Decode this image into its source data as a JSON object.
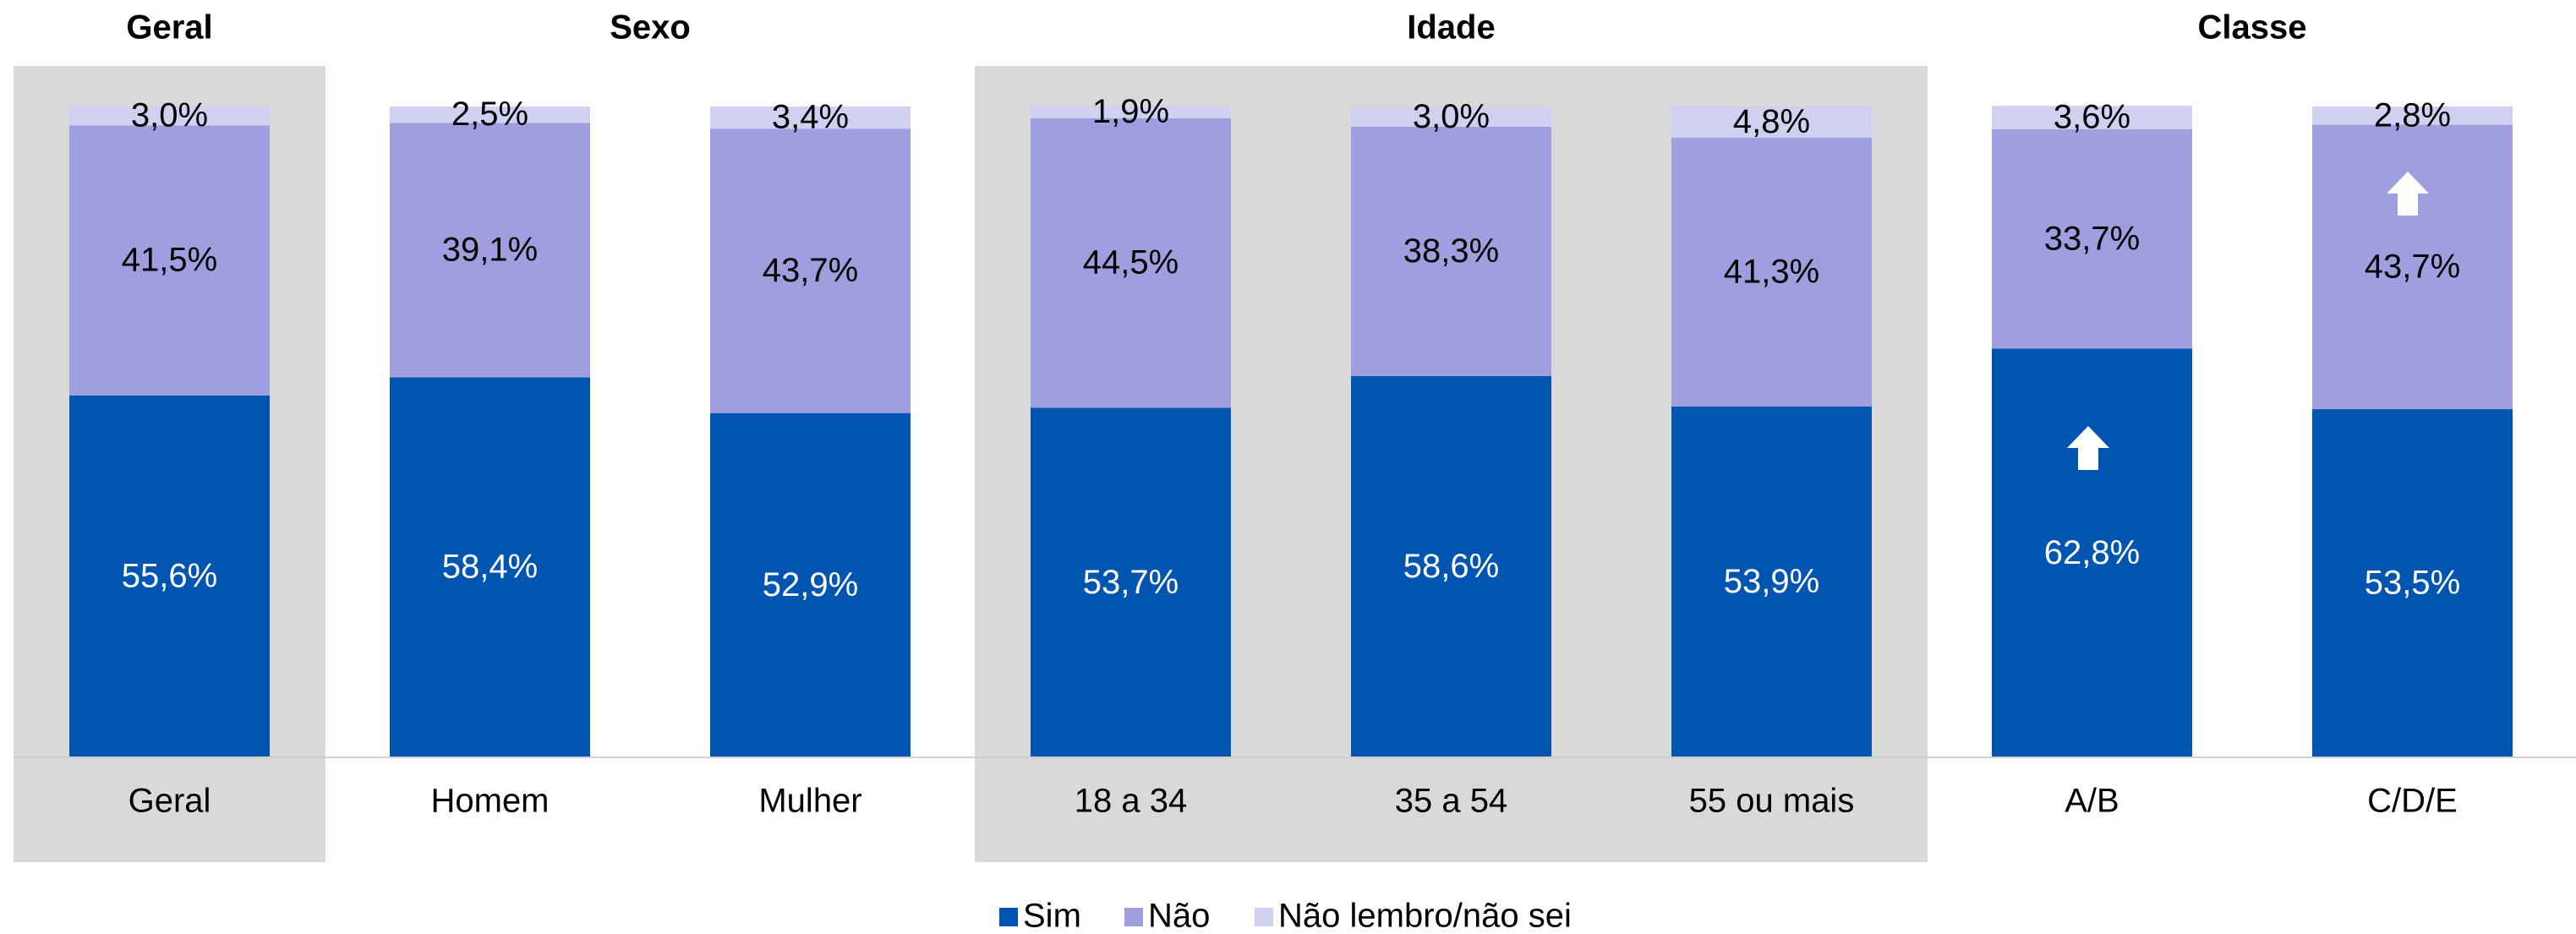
{
  "chart_data": {
    "type": "stacked_bar",
    "groups": [
      {
        "name": "Geral",
        "categories": [
          "Geral"
        ],
        "shaded": true
      },
      {
        "name": "Sexo",
        "categories": [
          "Homem",
          "Mulher"
        ],
        "shaded": false
      },
      {
        "name": "Idade",
        "categories": [
          "18 a 34",
          "35 a 54",
          "55 ou mais"
        ],
        "shaded": true
      },
      {
        "name": "Classe",
        "categories": [
          "A/B",
          "C/D/E"
        ],
        "shaded": false
      }
    ],
    "series": [
      {
        "name": "Sim",
        "color": "#0055b0",
        "values": [
          55.6,
          58.4,
          52.9,
          53.7,
          58.6,
          53.9,
          62.8,
          53.5
        ],
        "value_labels": [
          "55,6%",
          "58,4%",
          "52,9%",
          "53,7%",
          "58,6%",
          "53,9%",
          "62,8%",
          "53,5%"
        ]
      },
      {
        "name": "Não",
        "color": "#9f9fdf",
        "values": [
          41.5,
          39.1,
          43.7,
          44.5,
          38.3,
          41.3,
          33.7,
          43.7
        ],
        "value_labels": [
          "41,5%",
          "39,1%",
          "43,7%",
          "44,5%",
          "38,3%",
          "41,3%",
          "33,7%",
          "43,7%"
        ]
      },
      {
        "name": "Não lembro/não sei",
        "color": "#d0d0f0",
        "values": [
          3.0,
          2.5,
          3.4,
          1.9,
          3.0,
          4.8,
          3.6,
          2.8
        ],
        "value_labels": [
          "3,0%",
          "2,5%",
          "3,4%",
          "1,9%",
          "3,0%",
          "4,8%",
          "3,6%",
          "2,8%"
        ]
      }
    ],
    "ylim": [
      0,
      100
    ]
  }
}
